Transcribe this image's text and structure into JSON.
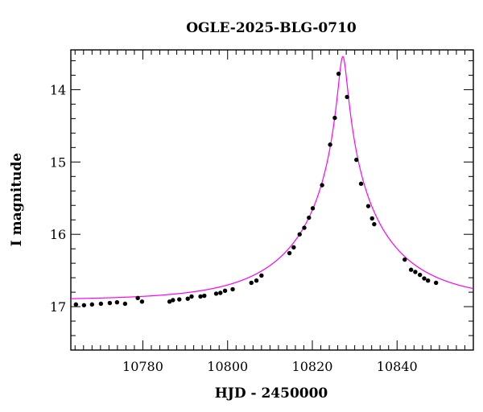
{
  "chart_data": {
    "type": "scatter",
    "title": "OGLE-2025-BLG-0710",
    "xlabel": "HJD - 2450000",
    "ylabel": "I magnitude",
    "xlim": [
      10763,
      10858
    ],
    "ylim": [
      17.6,
      13.45
    ],
    "y_inverted": true,
    "grid": false,
    "x_ticks": [
      10780,
      10800,
      10820,
      10840
    ],
    "y_ticks": [
      14,
      15,
      16,
      17
    ],
    "x_tick_labels": [
      "10780",
      "10800",
      "10820",
      "10840"
    ],
    "y_tick_labels": [
      "14",
      "15",
      "16",
      "17"
    ],
    "colors": {
      "data": "#000000",
      "model": "#ff00ff",
      "axes": "#000000"
    },
    "series": [
      {
        "kind": "points",
        "x": [
          10764.2,
          10766.1,
          10768.0,
          10770.1,
          10772.2,
          10773.9,
          10775.8,
          10778.8,
          10779.8,
          10786.3,
          10787.1,
          10788.6,
          10790.6,
          10791.5,
          10793.6,
          10794.5,
          10797.3,
          10798.3,
          10799.4,
          10801.2,
          10805.6,
          10806.8,
          10808.0,
          10814.6,
          10815.6,
          10817.0,
          10818.1,
          10819.2,
          10820.1,
          10822.3,
          10824.2,
          10825.3,
          10826.2,
          10828.2,
          10830.4,
          10831.5,
          10833.2,
          10834.1,
          10834.6,
          10841.8,
          10843.3,
          10844.3,
          10845.4,
          10846.4,
          10847.3,
          10849.2
        ],
        "y": [
          16.97,
          16.98,
          16.97,
          16.96,
          16.95,
          16.94,
          16.96,
          16.88,
          16.93,
          16.93,
          16.91,
          16.9,
          16.89,
          16.86,
          16.86,
          16.85,
          16.82,
          16.81,
          16.78,
          16.76,
          16.67,
          16.64,
          16.57,
          16.26,
          16.18,
          16.0,
          15.91,
          15.77,
          15.64,
          15.32,
          14.76,
          14.39,
          13.78,
          14.1,
          14.97,
          15.3,
          15.61,
          15.78,
          15.86,
          16.35,
          16.49,
          16.52,
          16.56,
          16.61,
          16.64,
          16.67
        ]
      },
      {
        "kind": "model",
        "t0": 10827.2,
        "u0": 0.045,
        "tE": 22.0,
        "baseline": 16.91
      }
    ]
  }
}
